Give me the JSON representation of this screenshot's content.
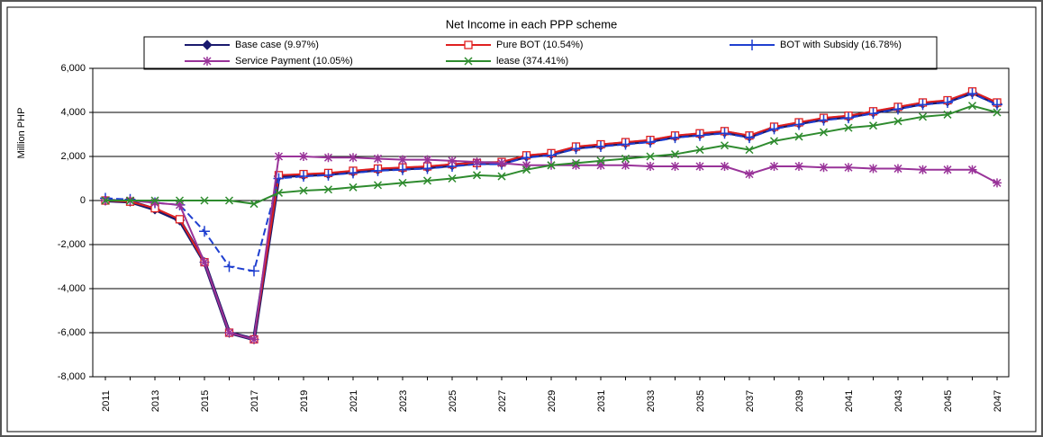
{
  "chart_data": {
    "type": "line",
    "title": "Net Income in each PPP scheme",
    "y_label": "Million PHP",
    "categories": [
      "2011",
      null,
      "2013",
      null,
      "2015",
      null,
      "2017",
      null,
      "2019",
      null,
      "2021",
      null,
      "2023",
      null,
      "2025",
      null,
      "2027",
      null,
      "2029",
      null,
      "2031",
      null,
      "2033",
      null,
      "2035",
      null,
      "2037",
      null,
      "2039",
      null,
      "2041",
      null,
      "2043",
      null,
      "2045",
      null,
      "2047"
    ],
    "ylim": [
      -8000,
      6000
    ],
    "yticks": [
      {
        "value": -8000,
        "label": "-8,000"
      },
      {
        "value": -6000,
        "label": "-6,000"
      },
      {
        "value": -4000,
        "label": "-4,000"
      },
      {
        "value": -2000,
        "label": "-2,000"
      },
      0,
      {
        "value": 2000,
        "label": "2,000"
      },
      {
        "value": 4000,
        "label": "4,000"
      },
      {
        "value": 6000,
        "label": "6,000"
      }
    ],
    "grid": true,
    "series": [
      {
        "name": "Base case (9.97%)",
        "color": "#1a1a6e",
        "marker": "diamond",
        "values": [
          0,
          -50,
          -400,
          -900,
          -2800,
          -6000,
          -6300,
          1100,
          1150,
          1200,
          1300,
          1400,
          1450,
          1500,
          1600,
          1700,
          1700,
          2000,
          2100,
          2400,
          2500,
          2600,
          2700,
          2900,
          3000,
          3100,
          2900,
          3300,
          3500,
          3700,
          3800,
          4000,
          4200,
          4400,
          4500,
          4900,
          4400
        ]
      },
      {
        "name": "Pure BOT (10.54%)",
        "color": "#e02020",
        "marker": "square",
        "values": [
          0,
          -50,
          -350,
          -850,
          -2800,
          -6000,
          -6300,
          1150,
          1200,
          1250,
          1350,
          1450,
          1500,
          1550,
          1650,
          1700,
          1750,
          2050,
          2150,
          2450,
          2550,
          2650,
          2750,
          2950,
          3050,
          3150,
          2950,
          3350,
          3550,
          3750,
          3850,
          4050,
          4250,
          4450,
          4550,
          4950,
          4450
        ]
      },
      {
        "name": "BOT with Subsidy (16.78%)",
        "color": "#1f3fd0",
        "marker": "plus",
        "values": [
          100,
          50,
          -100,
          -200,
          -1400,
          -3000,
          -3200,
          1000,
          1100,
          1150,
          1250,
          1350,
          1400,
          1450,
          1550,
          1650,
          1650,
          1950,
          2050,
          2350,
          2450,
          2550,
          2650,
          2850,
          2950,
          3050,
          2850,
          3250,
          3450,
          3650,
          3750,
          3950,
          4150,
          4350,
          4450,
          4850,
          4350
        ]
      },
      {
        "name": "Service Payment (10.05%)",
        "color": "#993399",
        "marker": "star",
        "values": [
          0,
          0,
          -100,
          -200,
          -2800,
          -6000,
          -6300,
          2000,
          2000,
          1950,
          1950,
          1900,
          1850,
          1850,
          1800,
          1750,
          1700,
          1600,
          1600,
          1600,
          1600,
          1600,
          1550,
          1550,
          1550,
          1550,
          1200,
          1550,
          1550,
          1500,
          1500,
          1450,
          1450,
          1400,
          1400,
          1400,
          800
        ]
      },
      {
        "name": "lease (374.41%)",
        "color": "#2e8b2e",
        "marker": "cross",
        "values": [
          0,
          0,
          0,
          0,
          0,
          0,
          -150,
          350,
          450,
          500,
          600,
          700,
          800,
          900,
          1000,
          1150,
          1100,
          1400,
          1600,
          1700,
          1800,
          1900,
          2000,
          2100,
          2300,
          2500,
          2300,
          2700,
          2900,
          3100,
          3300,
          3400,
          3600,
          3800,
          3900,
          4300,
          4000
        ]
      }
    ]
  }
}
